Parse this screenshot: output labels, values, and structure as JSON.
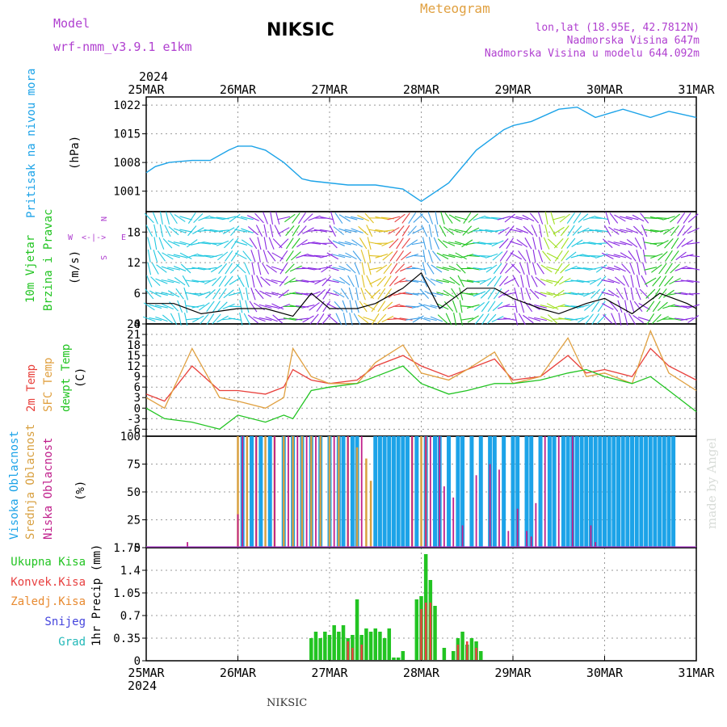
{
  "header": {
    "model_label": "Model",
    "model_value": "wrf-nmm_v3.9.1 e1km",
    "station": "NIKSIC",
    "meteogram_label": "Meteogram",
    "coords": "lon,lat (18.95E, 42.7812N)",
    "altitude": "Nadmorska Visina 647m",
    "model_altitude": "Nadmorska Visina u modelu 644.092m",
    "credit": "made by Angel",
    "footer_station": "NIKSIC"
  },
  "time_axis": {
    "year": "2024",
    "dates": [
      "25MAR",
      "26MAR",
      "27MAR",
      "28MAR",
      "29MAR",
      "30MAR",
      "31MAR"
    ]
  },
  "compass": {
    "n": "N",
    "s": "S",
    "w": "W",
    "e": "E"
  },
  "colors": {
    "pressure": "#1ca3e8",
    "temp2m": "#e8403b",
    "sfc_temp": "#e0a040",
    "dewpoint": "#22c422",
    "high_cloud": "#1ca3e8",
    "mid_cloud": "#d8a040",
    "low_cloud": "#c0208c",
    "precip_total": "#22c422",
    "precip_conv": "#e84040",
    "precip_frozen": "#e88a30",
    "snow": "#4444dd",
    "hail": "#22b8b8",
    "wind_label": "#22c422",
    "wind_unit": "#b040d0"
  },
  "chart_data": [
    {
      "type": "line",
      "ylabel": "Pritisak na nivou mora",
      "unit": "(hPa)",
      "yticks": [
        "1022",
        "1015",
        "1008",
        "1001"
      ],
      "ylim": [
        996,
        1024
      ],
      "x_days": [
        0,
        0.1,
        0.25,
        0.5,
        0.7,
        0.9,
        1.0,
        1.15,
        1.3,
        1.5,
        1.7,
        1.8,
        2.0,
        2.2,
        2.5,
        2.8,
        3.0,
        3.3,
        3.6,
        3.9,
        4.0,
        4.2,
        4.5,
        4.7,
        4.9,
        5.2,
        5.5,
        5.7,
        6.0
      ],
      "y": [
        1005.5,
        1007,
        1008,
        1008.5,
        1008.5,
        1011,
        1012,
        1012,
        1011,
        1008,
        1004,
        1003.5,
        1003,
        1002.5,
        1002.5,
        1001.5,
        998.5,
        1003,
        1011,
        1016,
        1017,
        1018,
        1021,
        1021.5,
        1019,
        1021,
        1019,
        1020.5,
        1019
      ]
    },
    {
      "type": "line",
      "ylabel": "10m Vjetar Brzina i Pravac",
      "unit": "(m/s)",
      "yticks": [
        "18",
        "12",
        "6",
        "0"
      ],
      "ylim": [
        0,
        22
      ],
      "series": [
        {
          "name": "speed",
          "x_days": [
            0,
            0.3,
            0.6,
            1.0,
            1.3,
            1.6,
            1.8,
            2.0,
            2.3,
            2.5,
            2.8,
            3.0,
            3.2,
            3.5,
            3.8,
            4.0,
            4.3,
            4.5,
            4.8,
            5.0,
            5.3,
            5.6,
            5.9,
            6.0
          ],
          "y": [
            4,
            4,
            2,
            3,
            3,
            1.5,
            6,
            3,
            3,
            4,
            7,
            10,
            3,
            7,
            7,
            5,
            3,
            2,
            4,
            5,
            2,
            6,
            4,
            3
          ]
        }
      ]
    },
    {
      "type": "line",
      "ylabel_lines": [
        "2m Temp",
        "SFC Temp",
        "dewpt Temp"
      ],
      "unit": "(C)",
      "yticks": [
        "24",
        "21",
        "18",
        "15",
        "12",
        "9",
        "6",
        "3",
        "0",
        "-3",
        "-6"
      ],
      "ylim": [
        -8,
        24
      ],
      "series": [
        {
          "name": "2m Temp",
          "x_days": [
            0,
            0.2,
            0.5,
            0.8,
            1.0,
            1.3,
            1.5,
            1.6,
            1.8,
            2.0,
            2.3,
            2.5,
            2.8,
            3.0,
            3.3,
            3.5,
            3.8,
            4.0,
            4.3,
            4.6,
            4.8,
            5.0,
            5.3,
            5.5,
            5.7,
            6.0
          ],
          "y": [
            4,
            2,
            12,
            5,
            5,
            4,
            6,
            11,
            8,
            7,
            8,
            12,
            15,
            12,
            9,
            11,
            14,
            8,
            9,
            15,
            10,
            11,
            9,
            17,
            12,
            8
          ]
        },
        {
          "name": "SFC Temp",
          "x_days": [
            0,
            0.2,
            0.5,
            0.8,
            1.0,
            1.3,
            1.5,
            1.6,
            1.8,
            2.0,
            2.3,
            2.5,
            2.8,
            3.0,
            3.3,
            3.5,
            3.8,
            4.0,
            4.3,
            4.6,
            4.8,
            5.0,
            5.3,
            5.5,
            5.7,
            6.0
          ],
          "y": [
            3,
            0,
            17,
            3,
            2,
            0,
            3,
            17,
            9,
            7,
            7,
            13,
            18,
            10,
            8,
            11,
            16,
            7,
            9,
            20,
            9,
            10,
            7,
            22,
            10,
            5
          ]
        },
        {
          "name": "dewpt Temp",
          "x_days": [
            0,
            0.2,
            0.5,
            0.8,
            1.0,
            1.3,
            1.5,
            1.6,
            1.8,
            2.0,
            2.3,
            2.5,
            2.8,
            3.0,
            3.3,
            3.5,
            3.8,
            4.0,
            4.3,
            4.6,
            4.8,
            5.0,
            5.3,
            5.5,
            5.7,
            6.0
          ],
          "y": [
            0,
            -3,
            -4,
            -6,
            -2,
            -4,
            -2,
            -3,
            5,
            6,
            7,
            9,
            12,
            7,
            4,
            5,
            7,
            7,
            8,
            10,
            11,
            9,
            7,
            9,
            5,
            -1
          ]
        }
      ]
    },
    {
      "type": "bar",
      "ylabel_lines": [
        "Visoka Oblacnost",
        "Srednja Oblacnost",
        "Niska Oblacnost"
      ],
      "unit": "(%)",
      "yticks": [
        "100",
        "75",
        "50",
        "25",
        "0"
      ],
      "ylim": [
        0,
        100
      ],
      "series": [
        {
          "name": "Visoka Oblacnost",
          "x_days": [
            1.05,
            1.15,
            1.25,
            1.35,
            1.5,
            1.6,
            1.7,
            1.8,
            1.9,
            2.0,
            2.1,
            2.15,
            2.25,
            2.3,
            2.5,
            2.55,
            2.6,
            2.65,
            2.7,
            2.75,
            2.8,
            2.85,
            2.95,
            3.05,
            3.15,
            3.2,
            3.3,
            3.4,
            3.45,
            3.55,
            3.65,
            3.75,
            3.8,
            3.9,
            4.0,
            4.05,
            4.15,
            4.2,
            4.3,
            4.4,
            4.45,
            4.55,
            4.6,
            4.65,
            4.7,
            4.75,
            4.8,
            4.85,
            4.9,
            4.95,
            5.0,
            5.05,
            5.1,
            5.15,
            5.2,
            5.25,
            5.3,
            5.35,
            5.4,
            5.45,
            5.5,
            5.55,
            5.6,
            5.65,
            5.7,
            5.75
          ],
          "y": [
            100,
            100,
            100,
            100,
            100,
            100,
            100,
            100,
            100,
            100,
            100,
            100,
            100,
            100,
            100,
            100,
            100,
            100,
            100,
            100,
            100,
            100,
            100,
            100,
            100,
            100,
            100,
            100,
            100,
            100,
            100,
            100,
            100,
            100,
            100,
            100,
            100,
            100,
            100,
            100,
            100,
            100,
            100,
            100,
            100,
            100,
            100,
            100,
            100,
            100,
            100,
            100,
            100,
            100,
            100,
            100,
            100,
            100,
            100,
            100,
            100,
            100,
            100,
            100,
            100,
            100
          ]
        },
        {
          "name": "Srednja Oblacnost",
          "x_days": [
            1.0,
            1.1,
            1.2,
            1.3,
            1.4,
            1.5,
            1.6,
            1.7,
            1.8,
            1.9,
            2.0,
            2.1,
            2.2,
            2.3,
            2.4,
            2.45,
            2.9,
            3.0,
            3.05
          ],
          "y": [
            100,
            100,
            100,
            100,
            100,
            100,
            100,
            100,
            100,
            100,
            100,
            100,
            100,
            90,
            80,
            60,
            100,
            100,
            100
          ]
        },
        {
          "name": "Niska Oblacnost",
          "x_days": [
            0.45,
            1.0,
            1.05,
            1.2,
            1.4,
            1.55,
            1.65,
            1.75,
            1.85,
            2.05,
            2.2,
            2.35,
            2.9,
            3.05,
            3.1,
            3.2,
            3.25,
            3.35,
            3.45,
            3.6,
            3.75,
            3.85,
            3.95,
            4.05,
            4.15,
            4.2,
            4.25,
            4.35,
            4.5,
            4.65,
            4.85,
            4.9
          ],
          "y": [
            5,
            30,
            100,
            100,
            100,
            100,
            100,
            100,
            100,
            100,
            100,
            100,
            100,
            100,
            100,
            100,
            55,
            45,
            20,
            65,
            75,
            70,
            15,
            35,
            15,
            10,
            40,
            100,
            100,
            100,
            20,
            5
          ]
        }
      ]
    },
    {
      "type": "bar",
      "ylabel": "1hr Precip (mm)",
      "legend": [
        "Ukupna Kisa",
        "Konvek.Kisa",
        "Zaledj.Kisa",
        "Snijeg",
        "Grad"
      ],
      "yticks": [
        "1.75",
        "1.4",
        "1.05",
        "0.7",
        "0.35",
        "0"
      ],
      "ylim": [
        0,
        1.75
      ],
      "series": [
        {
          "name": "Ukupna Kisa",
          "x_days": [
            1.8,
            1.85,
            1.9,
            1.95,
            2.0,
            2.05,
            2.1,
            2.15,
            2.2,
            2.25,
            2.3,
            2.35,
            2.4,
            2.45,
            2.5,
            2.55,
            2.6,
            2.65,
            2.7,
            2.75,
            2.8,
            2.95,
            3.0,
            3.05,
            3.1,
            3.15,
            3.25,
            3.35,
            3.4,
            3.45,
            3.5,
            3.55,
            3.6,
            3.65
          ],
          "y": [
            0.35,
            0.45,
            0.35,
            0.45,
            0.4,
            0.55,
            0.45,
            0.55,
            0.35,
            0.4,
            0.95,
            0.4,
            0.5,
            0.45,
            0.5,
            0.45,
            0.35,
            0.5,
            0.05,
            0.05,
            0.15,
            0.95,
            1.0,
            1.65,
            1.25,
            0.85,
            0.2,
            0.15,
            0.35,
            0.45,
            0.25,
            0.35,
            0.3,
            0.15
          ]
        },
        {
          "name": "Konvek.Kisa",
          "x_days": [
            2.2,
            2.25,
            2.35,
            3.0,
            3.05,
            3.1,
            3.4,
            3.5,
            3.6
          ],
          "y": [
            0.3,
            0.2,
            0.25,
            0.8,
            0.9,
            0.9,
            0.25,
            0.3,
            0.2
          ]
        }
      ]
    }
  ]
}
